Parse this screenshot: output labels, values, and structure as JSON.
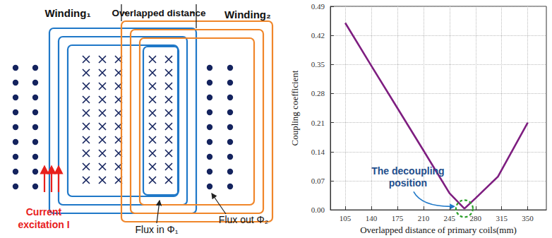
{
  "chart_data": {
    "type": "line",
    "x_label": "Overlapped distance of primary coils(mm)",
    "y_label": "Coupling coefficient",
    "x": [
      105,
      140,
      175,
      210,
      245,
      265,
      280,
      310,
      350
    ],
    "values": [
      0.45,
      0.347,
      0.245,
      0.143,
      0.04,
      0.003,
      0.028,
      0.08,
      0.21
    ],
    "color": "#7e1e80",
    "xlim": [
      85,
      375
    ],
    "xticks": [
      105,
      140,
      175,
      210,
      245,
      280,
      315,
      350
    ],
    "ylim": [
      0,
      0.49
    ],
    "yticks": [
      {
        "value": 0,
        "label": "0.00"
      },
      {
        "value": 0.07,
        "label": "0.07"
      },
      {
        "value": 0.14,
        "label": "0.14"
      },
      {
        "value": 0.21,
        "label": "0.21"
      },
      {
        "value": 0.28,
        "label": "0.28"
      },
      {
        "value": 0.35,
        "label": "0.35"
      },
      {
        "value": 0.42,
        "label": "0.42"
      },
      {
        "value": 0.49,
        "label": "0.49"
      }
    ],
    "grid": true,
    "annotation": {
      "lines": [
        "The decoupling",
        "position"
      ],
      "x": 265,
      "y": 0.003
    }
  },
  "diagram": {
    "winding1": "Winding₁",
    "winding2": "Winding₂",
    "overlap": "Overlapped distance",
    "current": [
      "Current",
      "excitation I"
    ],
    "flux_in": "Flux in Φ₁",
    "flux_out": "Flux out Φ₂"
  }
}
